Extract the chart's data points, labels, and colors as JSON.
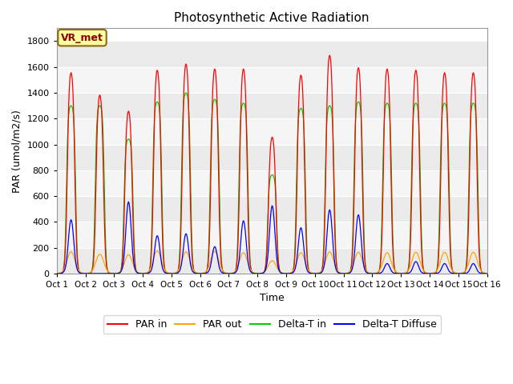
{
  "title": "Photosynthetic Active Radiation",
  "xlabel": "Time",
  "ylabel": "PAR (umol/m2/s)",
  "ylim": [
    0,
    1900
  ],
  "yticks": [
    0,
    200,
    400,
    600,
    800,
    1000,
    1200,
    1400,
    1600,
    1800
  ],
  "annotation_text": "VR_met",
  "legend_labels": [
    "PAR in",
    "PAR out",
    "Delta-T in",
    "Delta-T Diffuse"
  ],
  "colors": {
    "PAR_in": "#FF0000",
    "PAR_out": "#FFA500",
    "Delta_T_in": "#00CC00",
    "Delta_T_Diffuse": "#0000FF"
  },
  "xtick_labels": [
    "Oct 1",
    "Oct 2",
    "Oct 3",
    "Oct 4",
    "Oct 5",
    "Oct 6",
    "Oct 7",
    "Oct 8",
    "Oct 9",
    "Oct 10",
    "Oct 11",
    "Oct 12",
    "Oct 13",
    "Oct 14",
    "Oct 15",
    "Oct 16"
  ],
  "day_peaks_PAR_in": [
    1620,
    1440,
    1310,
    1640,
    1690,
    1650,
    1650,
    1100,
    1600,
    1760,
    1660,
    1650,
    1640,
    1620,
    1620
  ],
  "day_peaks_PAR_out": [
    220,
    195,
    190,
    230,
    220,
    225,
    210,
    130,
    210,
    220,
    215,
    210,
    215,
    215,
    215
  ],
  "day_peaks_Delta_in": [
    1310,
    1310,
    1050,
    1340,
    1410,
    1360,
    1330,
    770,
    1290,
    1310,
    1340,
    1330,
    1330,
    1330,
    1330
  ],
  "day_peaks_Delta_dif": [
    540,
    0,
    720,
    380,
    400,
    270,
    530,
    680,
    460,
    640,
    590,
    100,
    120,
    100,
    100
  ],
  "hours_per_day": 48,
  "total_days": 15,
  "bg_band_colors": [
    "#EBEBEB",
    "#F5F5F5"
  ]
}
